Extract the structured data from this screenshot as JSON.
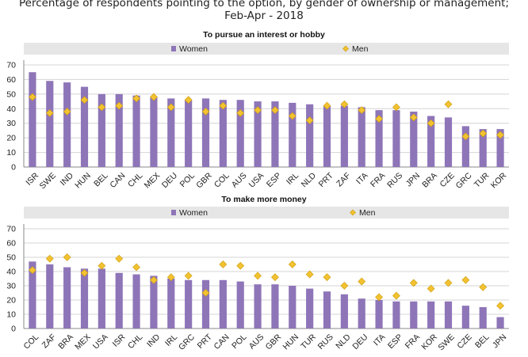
{
  "title_line1": "Percentage of respondents pointing to the option, by gender of ownership or management;",
  "title_line2": "Feb-Apr - 2018",
  "colors": {
    "women": "#8e75b8",
    "men": "#f2c230",
    "men_stroke": "#c99a10",
    "grid": "#d4d4d4",
    "legend_bg": "#e6e6e6"
  },
  "chart_data": [
    {
      "type": "bar",
      "title": "To pursue an interest or hobby",
      "legend": [
        "Women",
        "Men"
      ],
      "ylim": [
        0,
        70
      ],
      "yticks": [
        0,
        10,
        20,
        30,
        40,
        50,
        60,
        70
      ],
      "categories": [
        "ISR",
        "SWE",
        "IND",
        "HUN",
        "BEL",
        "CAN",
        "CHL",
        "MEX",
        "DEU",
        "POL",
        "GBR",
        "COL",
        "AUS",
        "USA",
        "ESP",
        "IRL",
        "NLD",
        "PRT",
        "ZAF",
        "ITA",
        "FRA",
        "RUS",
        "JPN",
        "BRA",
        "CZE",
        "GRC",
        "TUR",
        "KOR"
      ],
      "series": [
        {
          "name": "Women",
          "kind": "bar",
          "values": [
            65,
            59,
            58,
            55,
            50,
            50,
            49,
            48,
            47,
            46,
            47,
            46,
            46,
            45,
            45,
            44,
            43,
            42,
            42,
            41,
            39,
            39,
            38,
            35,
            34,
            28,
            26,
            26
          ]
        },
        {
          "name": "Men",
          "kind": "marker",
          "values": [
            48,
            37,
            38,
            46,
            41,
            42,
            47,
            48,
            41,
            46,
            38,
            42,
            37,
            39,
            39,
            35,
            32,
            42,
            43,
            39,
            33,
            41,
            34,
            30,
            43,
            21,
            23,
            22
          ]
        }
      ]
    },
    {
      "type": "bar",
      "title": "To make more money",
      "legend": [
        "Women",
        "Men"
      ],
      "ylim": [
        0,
        70
      ],
      "yticks": [
        0,
        10,
        20,
        30,
        40,
        50,
        60,
        70
      ],
      "categories": [
        "COL",
        "ZAF",
        "BRA",
        "MEX",
        "USA",
        "ISR",
        "CHL",
        "IND",
        "IRL",
        "GRC",
        "PRT",
        "CAN",
        "POL",
        "AUS",
        "GBR",
        "HUN",
        "TUR",
        "RUS",
        "NLD",
        "DEU",
        "ITA",
        "ESP",
        "FRA",
        "KOR",
        "SWE",
        "CZE",
        "BEL",
        "JPN"
      ],
      "series": [
        {
          "name": "Women",
          "kind": "bar",
          "values": [
            47,
            45,
            43,
            42,
            42,
            39,
            38,
            37,
            35,
            34,
            34,
            34,
            33,
            31,
            31,
            30,
            28,
            26,
            24,
            21,
            20,
            19,
            19,
            19,
            19,
            16,
            15,
            8
          ]
        },
        {
          "name": "Men",
          "kind": "marker",
          "values": [
            41,
            49,
            50,
            39,
            44,
            49,
            43,
            34,
            36,
            37,
            25,
            45,
            44,
            37,
            36,
            45,
            38,
            36,
            30,
            33,
            22,
            23,
            32,
            28,
            32,
            34,
            29,
            16
          ]
        }
      ]
    }
  ]
}
